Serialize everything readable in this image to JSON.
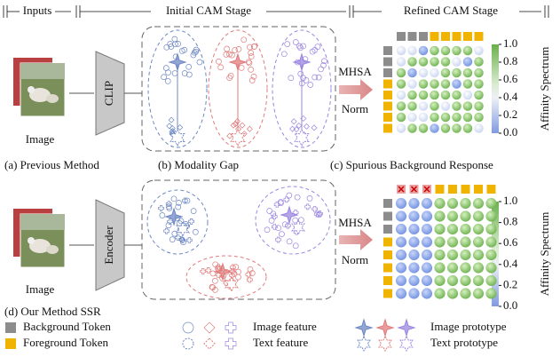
{
  "header": {
    "stages": [
      "Inputs",
      "Initial CAM Stage",
      "Refined CAM Stage"
    ]
  },
  "top": {
    "input_label": "Image",
    "encoder": "CLIP",
    "ops": [
      "MHSA",
      "Norm"
    ],
    "colorbar": {
      "label": "Affinity Spectrum",
      "ticks": [
        "1.0",
        "0.8",
        "0.6",
        "0.4",
        "0.2",
        "0.0"
      ]
    }
  },
  "captions": [
    "(a) Previous Method",
    "(b) Modality Gap",
    "(c) Spurious Background Response"
  ],
  "bottom": {
    "input_label": "Image",
    "encoder": "Encoder",
    "ops": [
      "MHSA",
      "Norm"
    ],
    "colorbar": {
      "label": "Affinity Spectrum",
      "ticks": [
        "1.0",
        "0.8",
        "0.6",
        "0.4",
        "0.2",
        "0.0"
      ]
    }
  },
  "legend": {
    "title": "(d) Our Method SSR",
    "background": "Background Token",
    "foreground": "Foreground Token",
    "image_feature": "Image feature",
    "text_feature": "Text feature",
    "image_prototype": "Image prototype",
    "text_prototype": "Text prototype"
  }
}
